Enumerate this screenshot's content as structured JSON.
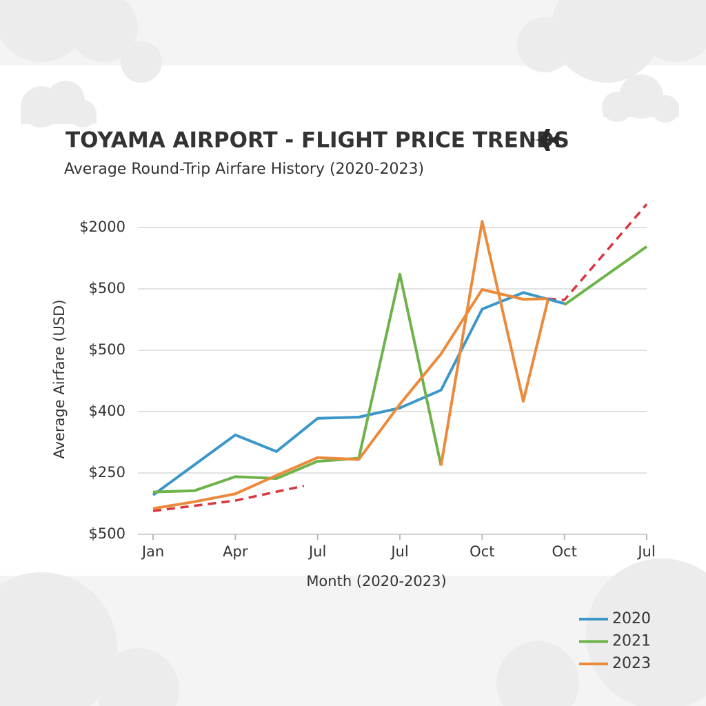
{
  "chart_data": {
    "type": "line",
    "title": "TOYAMA AIRPORT - FLIGHT PRICE TRENDS",
    "subtitle": "Average Round-Trip Airfare History (2020-2023)",
    "x_label": "Month (2020-2023)",
    "y_label": "Average Airfare (USD)",
    "xlim": [
      0,
      18
    ],
    "xticks": [
      {
        "value": 0,
        "label": "Jan"
      },
      {
        "value": 3,
        "label": "Apr"
      },
      {
        "value": 6,
        "label": "Jul"
      },
      {
        "value": 9,
        "label": "Jul"
      },
      {
        "value": 12,
        "label": "Oct"
      },
      {
        "value": 15,
        "label": "Oct"
      },
      {
        "value": 18,
        "label": "Jul"
      }
    ],
    "ylim": [
      0,
      5.5
    ],
    "yticks": [
      {
        "value": 0,
        "label": "$500"
      },
      {
        "value": 1,
        "label": "$250"
      },
      {
        "value": 2,
        "label": "$400"
      },
      {
        "value": 3,
        "label": "$500"
      },
      {
        "value": 4,
        "label": "$500"
      },
      {
        "value": 5,
        "label": "$2000"
      }
    ],
    "grid": true,
    "legend": "bottom-right",
    "series": [
      {
        "name": "2020",
        "color": "#3c97c9",
        "x": [
          0,
          3,
          4.5,
          6,
          7.5,
          9,
          10.5,
          12,
          13.5,
          15
        ],
        "values": [
          0.64,
          1.62,
          1.35,
          1.89,
          1.91,
          2.06,
          2.35,
          3.67,
          3.94,
          3.76
        ]
      },
      {
        "name": "2021",
        "color": "#6db34a",
        "x": [
          0,
          1.5,
          3,
          4.5,
          6,
          7.5,
          9,
          10.5,
          null,
          15,
          18
        ],
        "values": [
          0.69,
          0.71,
          0.94,
          0.91,
          1.19,
          1.24,
          4.24,
          1.12,
          null,
          3.74,
          4.69
        ]
      },
      {
        "name": "2023",
        "color": "#ec8a3b",
        "x": [
          0,
          1.5,
          3,
          4.5,
          6,
          7.5,
          9,
          10.5,
          12,
          13.5,
          14.4,
          null,
          10.5,
          12,
          13.5,
          14.4
        ],
        "values": [
          0.42,
          0.53,
          0.66,
          0.96,
          1.25,
          1.22,
          2.12,
          2.94,
          3.99,
          3.83,
          3.84,
          null,
          1.12,
          5.1,
          2.17,
          3.82
        ]
      }
    ],
    "trend_line": {
      "color": "#d9363e",
      "dashed": true,
      "x": [
        0,
        3,
        5.5,
        null,
        14.4,
        15,
        18
      ],
      "values": [
        0.38,
        0.55,
        0.79,
        null,
        3.84,
        3.82,
        5.38
      ]
    }
  }
}
